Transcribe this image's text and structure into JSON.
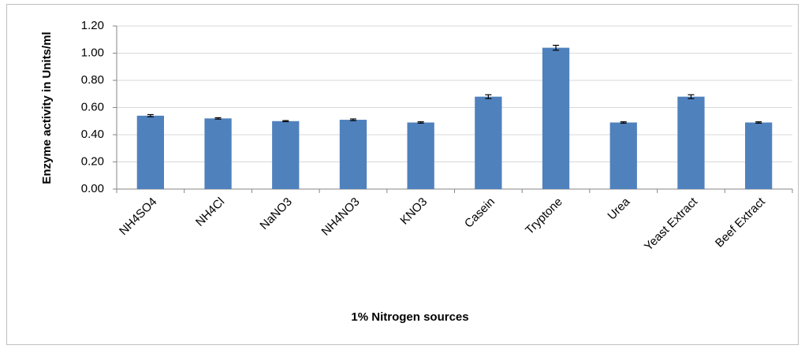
{
  "chart_data": {
    "type": "bar",
    "x_label": "1% Nitrogen  sources",
    "y_label": "Enzyme activity in Units/ml",
    "categories": [
      "NH4SO4",
      "NH4Cl",
      "NaNO3",
      "NH4NO3",
      "KNO3",
      "Casein",
      "Tryptone",
      "Urea",
      "Yeast Extract",
      "Beef Extract"
    ],
    "values": [
      0.54,
      0.52,
      0.5,
      0.51,
      0.49,
      0.68,
      1.04,
      0.49,
      0.68,
      0.49
    ],
    "errors": [
      0.008,
      0.005,
      0.004,
      0.006,
      0.005,
      0.014,
      0.018,
      0.005,
      0.014,
      0.005
    ],
    "color": "#4f81bd",
    "ylim": [
      0,
      1.2
    ],
    "yticks": [
      {
        "value": 0,
        "label": "0.00"
      },
      {
        "value": 0.2,
        "label": "0.20"
      },
      {
        "value": 0.4,
        "label": "0.40"
      },
      {
        "value": 0.6,
        "label": "0.60"
      },
      {
        "value": 0.8,
        "label": "0.80"
      },
      {
        "value": 1.0,
        "label": "1.00"
      },
      {
        "value": 1.2,
        "label": "1.20"
      }
    ],
    "grid": true
  }
}
